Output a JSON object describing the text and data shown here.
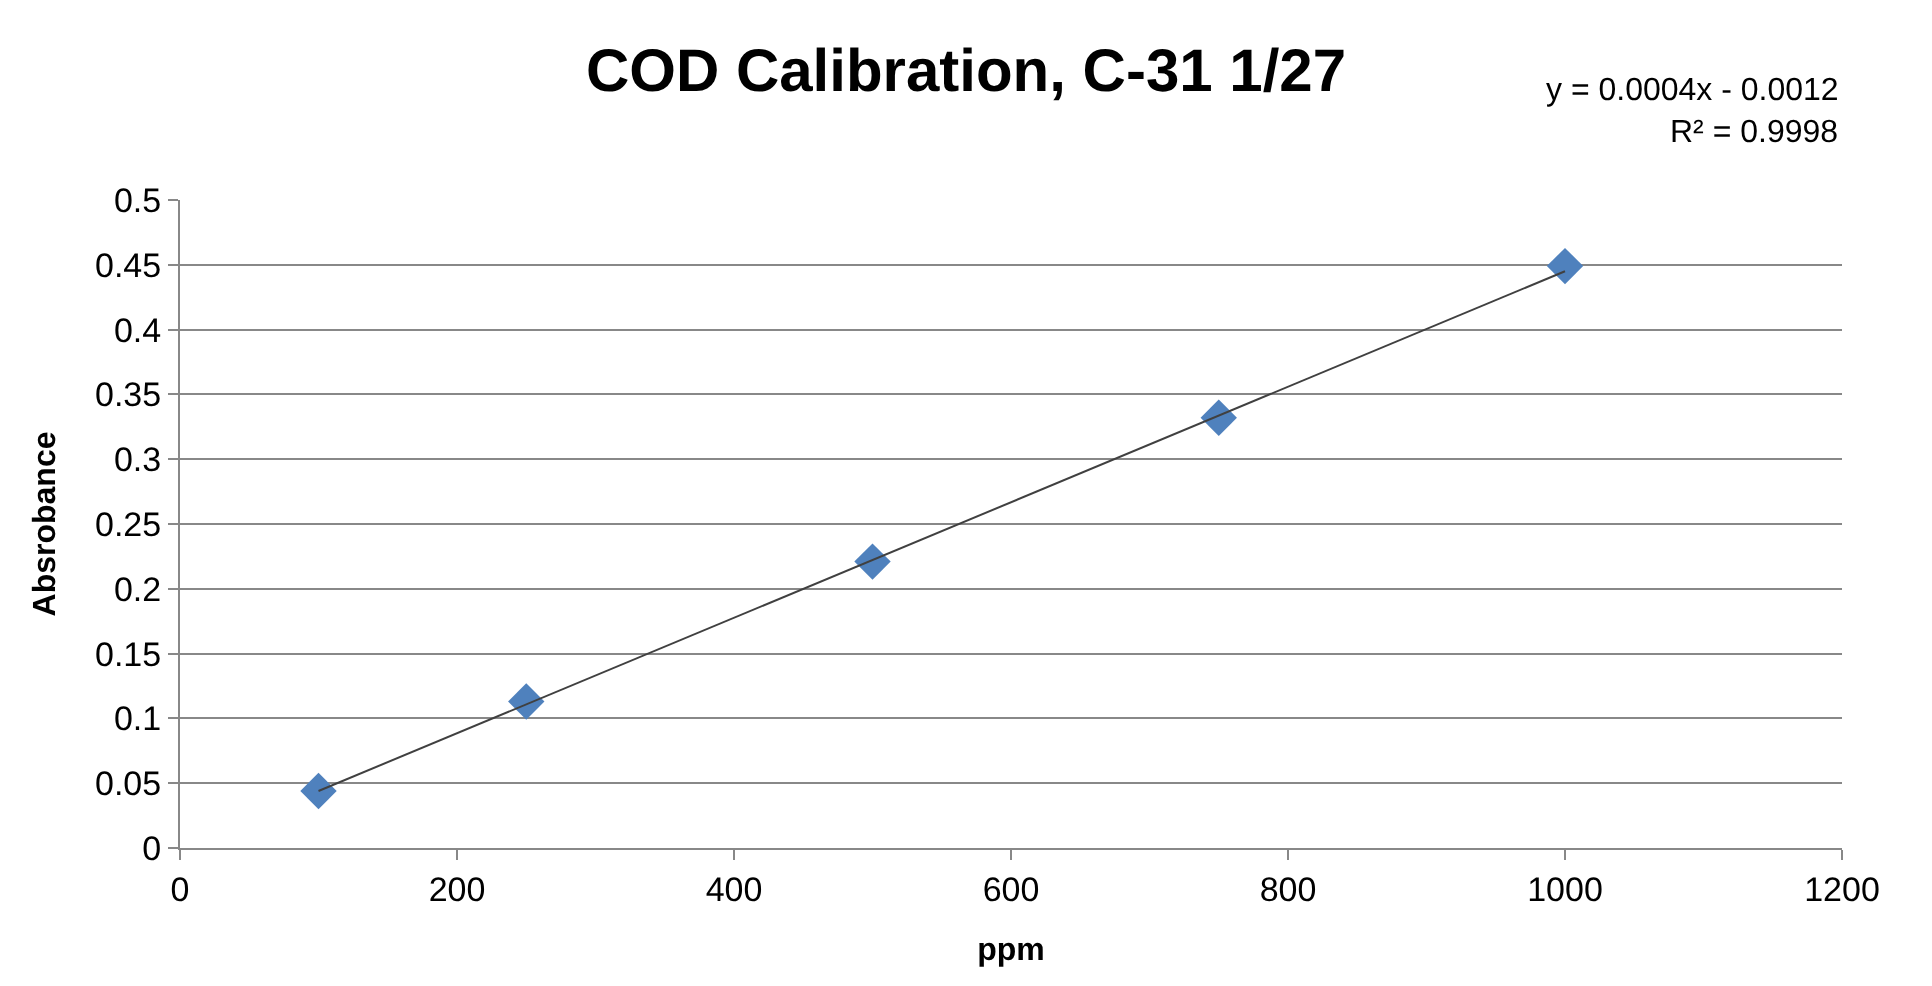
{
  "chart_data": {
    "type": "scatter",
    "title": "COD Calibration, C-31 1/27",
    "xlabel": "ppm",
    "ylabel": "Absrobance",
    "x": [
      100,
      250,
      500,
      750,
      1000
    ],
    "series": [
      {
        "color": "#4f81bd",
        "marker": "diamond",
        "values": [
          0.044,
          0.113,
          0.221,
          0.332,
          0.449
        ]
      },
      {
        "type": "line",
        "color": "#404040",
        "marker": "none",
        "line_style": "solid",
        "x": [
          100,
          1000
        ],
        "values": [
          0.044,
          0.445
        ]
      }
    ],
    "xlim": [
      0,
      1200
    ],
    "xticks": [
      0,
      200,
      400,
      600,
      800,
      1000,
      1200
    ],
    "ylim": [
      0,
      0.5
    ],
    "yticks": [
      0,
      0.05,
      0.1,
      0.15,
      0.2,
      0.25,
      0.3,
      0.35,
      0.4,
      0.45,
      0.5
    ],
    "grid": "y",
    "legend": false,
    "annotations": [
      "y = 0.0004x - 0.0012",
      "R² = 0.9998"
    ]
  }
}
